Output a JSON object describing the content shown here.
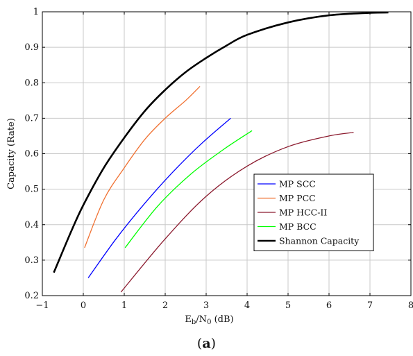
{
  "chart_data": {
    "type": "line",
    "xlabel_parts": {
      "main": "E",
      "sub1": "b",
      "mid": "/N",
      "sub2": "0",
      "tail": " (dB)"
    },
    "ylabel": "Capacity (Rate)",
    "xlim": [
      -1,
      8
    ],
    "ylim": [
      0.2,
      1.0
    ],
    "xticks": [
      "−1",
      "0",
      "1",
      "2",
      "3",
      "4",
      "5",
      "6",
      "7",
      "8"
    ],
    "yticks": [
      "0.2",
      "0.3",
      "0.4",
      "0.5",
      "0.6",
      "0.7",
      "0.8",
      "0.9",
      "1"
    ],
    "grid": true,
    "legend_position": "center-right",
    "series": [
      {
        "name": "MP SCC",
        "color": "#0000ff",
        "width": 1.3,
        "x": [
          0.12,
          0.8,
          1.5,
          2.2,
          2.9,
          3.6
        ],
        "y": [
          0.25,
          0.36,
          0.46,
          0.55,
          0.63,
          0.7
        ]
      },
      {
        "name": "MP PCC",
        "color": "#f07030",
        "width": 1.3,
        "x": [
          0.03,
          0.5,
          1.0,
          1.5,
          2.0,
          2.5,
          2.85
        ],
        "y": [
          0.335,
          0.47,
          0.56,
          0.64,
          0.7,
          0.75,
          0.79
        ]
      },
      {
        "name": "MP HCC-II",
        "color": "#8b1a2e",
        "width": 1.3,
        "x": [
          0.92,
          2.0,
          3.0,
          4.0,
          5.0,
          6.0,
          6.6
        ],
        "y": [
          0.21,
          0.36,
          0.48,
          0.565,
          0.62,
          0.65,
          0.66
        ]
      },
      {
        "name": "MP BCC",
        "color": "#00ff00",
        "width": 1.3,
        "x": [
          1.02,
          1.8,
          2.6,
          3.4,
          4.12
        ],
        "y": [
          0.335,
          0.45,
          0.54,
          0.61,
          0.665
        ]
      },
      {
        "name": "Shannon Capacity",
        "color": "#000000",
        "width": 2.6,
        "x": [
          -0.72,
          -0.3,
          0.0,
          0.5,
          1.0,
          1.5,
          2.0,
          2.5,
          3.0,
          3.5,
          4.0,
          5.0,
          6.0,
          7.0,
          7.45
        ],
        "y": [
          0.265,
          0.38,
          0.455,
          0.56,
          0.645,
          0.72,
          0.78,
          0.83,
          0.87,
          0.905,
          0.935,
          0.97,
          0.99,
          0.997,
          0.998
        ]
      }
    ]
  },
  "subcaption": "(a)"
}
